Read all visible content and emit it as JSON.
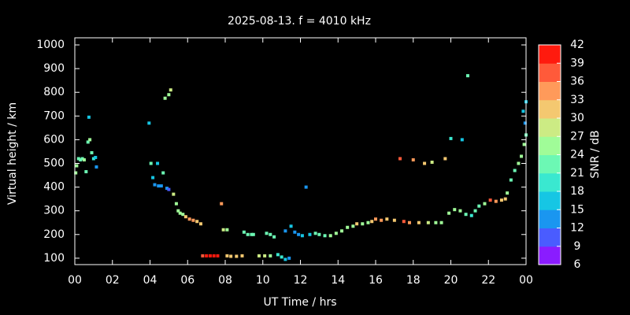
{
  "chart_data": {
    "type": "scatter",
    "title": "2025-08-13. f = 4010 kHz",
    "xlabel": "UT Time / hrs",
    "ylabel": "Virtual height / km",
    "xlim": [
      0,
      24
    ],
    "ylim": [
      73,
      1030
    ],
    "xticks": [
      {
        "value": 0,
        "label": "00"
      },
      {
        "value": 2,
        "label": "02"
      },
      {
        "value": 4,
        "label": "04"
      },
      {
        "value": 6,
        "label": "06"
      },
      {
        "value": 8,
        "label": "08"
      },
      10,
      12,
      14,
      16,
      18,
      20,
      22,
      {
        "value": 24,
        "label": "00"
      }
    ],
    "yticks": [
      100,
      200,
      300,
      400,
      500,
      600,
      700,
      800,
      900,
      1000
    ],
    "colorbar": {
      "label": "SNR / dB",
      "lim": [
        6,
        42
      ],
      "ticks": [
        6,
        9,
        12,
        15,
        18,
        21,
        24,
        27,
        30,
        33,
        36,
        39,
        42
      ],
      "colors": [
        "#8a1cff",
        "#4a5cff",
        "#1a96f0",
        "#16c6e4",
        "#3ae8d0",
        "#6cf8b4",
        "#a0fc98",
        "#cceb84",
        "#f4c870",
        "#ff9a5a",
        "#ff5a3a",
        "#ff1a0e"
      ]
    },
    "x": [
      0.05,
      0.1,
      0.2,
      0.3,
      0.4,
      0.5,
      0.6,
      0.7,
      0.75,
      0.8,
      0.9,
      1.0,
      1.1,
      1.15,
      3.95,
      4.05,
      4.15,
      4.25,
      4.4,
      4.45,
      4.6,
      4.7,
      4.8,
      4.9,
      5.0,
      5.0,
      5.1,
      5.25,
      5.4,
      5.5,
      5.6,
      5.75,
      5.9,
      6.1,
      6.3,
      6.5,
      6.7,
      7.8,
      7.9,
      8.1,
      9.0,
      9.2,
      9.4,
      9.5,
      10.2,
      10.4,
      10.6,
      6.8,
      7.0,
      7.2,
      7.4,
      7.6,
      8.1,
      8.3,
      8.6,
      8.9,
      9.8,
      10.1,
      10.4,
      10.8,
      11.0,
      11.2,
      11.4,
      11.2,
      11.5,
      11.7,
      11.9,
      12.1,
      12.3,
      12.5,
      12.8,
      13.0,
      13.3,
      13.6,
      13.9,
      14.2,
      14.5,
      14.8,
      15.0,
      15.3,
      15.6,
      15.8,
      16.0,
      16.3,
      16.6,
      17.0,
      17.3,
      17.5,
      17.8,
      18.0,
      18.3,
      18.6,
      18.8,
      19.0,
      19.2,
      19.5,
      19.7,
      19.9,
      20.0,
      20.2,
      20.5,
      20.6,
      20.8,
      20.9,
      21.1,
      21.3,
      21.5,
      21.8,
      22.1,
      22.4,
      22.7,
      22.9,
      23.0,
      23.2,
      23.4,
      23.6,
      23.75,
      23.9,
      24.0,
      23.85,
      23.95,
      24.0
    ],
    "values": [
      460,
      490,
      520,
      515,
      520,
      515,
      465,
      590,
      695,
      600,
      545,
      520,
      525,
      485,
      670,
      500,
      440,
      410,
      500,
      405,
      405,
      460,
      775,
      395,
      390,
      790,
      810,
      370,
      330,
      300,
      290,
      285,
      275,
      265,
      260,
      255,
      245,
      330,
      220,
      220,
      210,
      200,
      200,
      200,
      205,
      200,
      190,
      110,
      110,
      110,
      110,
      110,
      110,
      108,
      108,
      110,
      110,
      110,
      110,
      115,
      105,
      95,
      100,
      215,
      235,
      210,
      200,
      195,
      400,
      200,
      205,
      200,
      195,
      195,
      205,
      215,
      230,
      235,
      245,
      245,
      250,
      255,
      265,
      260,
      265,
      260,
      520,
      255,
      250,
      515,
      250,
      500,
      250,
      505,
      250,
      250,
      520,
      290,
      605,
      305,
      300,
      600,
      285,
      870,
      280,
      300,
      320,
      330,
      345,
      340,
      345,
      350,
      375,
      430,
      470,
      500,
      530,
      580,
      620,
      720,
      670,
      760
    ],
    "snr": [
      24,
      24,
      22,
      22,
      22,
      24,
      22,
      22,
      16,
      24,
      22,
      18,
      16,
      12,
      15,
      22,
      15,
      12,
      15,
      12,
      12,
      22,
      24,
      12,
      10,
      26,
      28,
      27,
      25,
      24,
      24,
      24,
      30,
      34,
      34,
      32,
      30,
      34,
      27,
      24,
      22,
      22,
      22,
      22,
      22,
      22,
      21,
      38,
      40,
      40,
      40,
      40,
      30,
      30,
      30,
      32,
      27,
      27,
      25,
      20,
      20,
      15,
      13,
      12,
      15,
      12,
      12,
      15,
      12,
      15,
      22,
      22,
      22,
      24,
      25,
      25,
      25,
      25,
      30,
      25,
      25,
      30,
      34,
      33,
      32,
      30,
      36,
      36,
      33,
      33,
      30,
      30,
      27,
      27,
      26,
      25,
      32,
      25,
      18,
      25,
      25,
      16,
      21,
      21,
      18,
      22,
      21,
      24,
      38,
      33,
      30,
      30,
      24,
      22,
      22,
      24,
      25,
      24,
      22,
      17,
      14,
      16
    ]
  }
}
